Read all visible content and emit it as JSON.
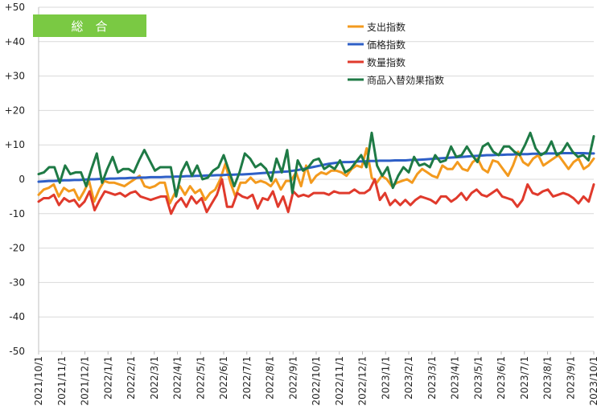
{
  "chart_data": {
    "type": "line",
    "title_badge": "総　合",
    "ylim": [
      -50,
      50
    ],
    "yticks": [
      "+50",
      "+40",
      "+30",
      "+20",
      "+10",
      "0",
      "-10",
      "-20",
      "-30",
      "-40",
      "-50"
    ],
    "ytick_values": [
      50,
      40,
      30,
      20,
      10,
      0,
      -10,
      -20,
      -30,
      -40,
      -50
    ],
    "xtick_labels": [
      "2021/10/1",
      "2021/11/1",
      "2021/12/1",
      "2022/1/1",
      "2022/2/1",
      "2022/3/1",
      "2022/4/1",
      "2022/5/1",
      "2022/6/1",
      "2022/7/1",
      "2022/8/1",
      "2022/9/1",
      "2022/10/1",
      "2022/11/1",
      "2022/12/1",
      "2023/1/1",
      "2023/2/1",
      "2023/3/1",
      "2023/4/1",
      "2023/5/1",
      "2023/6/1",
      "2023/7/1",
      "2023/8/1",
      "2023/9/1",
      "2023/10/1"
    ],
    "legend_position": "top-right",
    "grid": true,
    "x_period": "weekly, 2021/10/1 – 2023/10/1",
    "series": [
      {
        "name": "支出指数",
        "color": "#F39A1E",
        "values": [
          -4.5,
          -3,
          -2.5,
          -1.5,
          -5,
          -2.5,
          -3.5,
          -3,
          -6,
          -3.5,
          -0.5,
          -6.5,
          -3,
          -0.5,
          -1,
          -1,
          -1.5,
          -2,
          -1,
          0,
          1,
          -2,
          -2.5,
          -2,
          -1,
          -1,
          -7,
          -4,
          -2,
          -4.5,
          -2,
          -4,
          -3,
          -6,
          -4,
          -3,
          0,
          4.5,
          -1,
          -5,
          -1,
          -1,
          0.5,
          -1,
          -0.5,
          -1,
          -2,
          0,
          -3,
          -0.5,
          -0.5,
          2,
          -2,
          4,
          -1,
          1,
          2,
          1.5,
          2.5,
          2.5,
          2,
          1,
          3,
          4,
          3.5,
          9,
          0.5,
          -1,
          1,
          0,
          -2,
          -1,
          -0.5,
          0,
          -1,
          1.5,
          3,
          2,
          1,
          0.5,
          4,
          3,
          3,
          5,
          3,
          2.5,
          5,
          6,
          3,
          2,
          5.5,
          5,
          3,
          1,
          4,
          8,
          5,
          4,
          6,
          7,
          4,
          5,
          6,
          7,
          5,
          3,
          5,
          6,
          3,
          4,
          6
        ]
      },
      {
        "name": "価格指数",
        "color": "#2E5FC7",
        "values": [
          -0.7,
          -0.6,
          -0.5,
          -0.5,
          -0.4,
          -0.3,
          -0.3,
          -0.2,
          -0.2,
          -0.1,
          0,
          0,
          0.1,
          0.1,
          0.2,
          0.2,
          0.3,
          0.3,
          0.4,
          0.4,
          0.5,
          0.5,
          0.6,
          0.6,
          0.6,
          0.7,
          0.7,
          0.8,
          0.8,
          0.9,
          0.9,
          1,
          1,
          1.1,
          1.1,
          1.2,
          1.2,
          1.3,
          1.3,
          1.4,
          1.4,
          1.5,
          1.6,
          1.7,
          1.8,
          1.9,
          2,
          2.1,
          2.2,
          2.3,
          2.5,
          2.7,
          3,
          3.3,
          3.6,
          3.9,
          4.2,
          4.5,
          4.7,
          4.9,
          5,
          5,
          5.1,
          5.2,
          5.2,
          5.3,
          5.3,
          5.4,
          5.4,
          5.4,
          5.5,
          5.5,
          5.5,
          5.6,
          5.6,
          5.7,
          5.8,
          5.9,
          6,
          6.1,
          6.2,
          6.3,
          6.4,
          6.5,
          6.6,
          6.7,
          6.8,
          6.9,
          7,
          7,
          7.1,
          7.1,
          7.2,
          7.2,
          7.3,
          7.3,
          7.3,
          7.4,
          7.4,
          7.4,
          7.5,
          7.5,
          7.5,
          7.6,
          7.6,
          7.6,
          7.6,
          7.6,
          7.5,
          7.5
        ]
      },
      {
        "name": "数量指数",
        "color": "#E03A2C",
        "values": [
          -6.5,
          -5.5,
          -5.5,
          -4.5,
          -7.5,
          -5.5,
          -6.5,
          -6,
          -8,
          -6.5,
          -3.5,
          -9,
          -6,
          -3.5,
          -4,
          -4.5,
          -4,
          -5,
          -4,
          -3.5,
          -5,
          -5.5,
          -6,
          -5.5,
          -5,
          -5,
          -10,
          -7,
          -5.5,
          -8,
          -5,
          -7,
          -5.5,
          -9.5,
          -7,
          -4.5,
          0,
          -8,
          -8,
          -4,
          -5,
          -5.5,
          -4.5,
          -8.5,
          -5.5,
          -6,
          -3.5,
          -8,
          -5,
          -9.5,
          -3.5,
          -5,
          -4.5,
          -5,
          -4,
          -4,
          -4,
          -4.5,
          -3.5,
          -4,
          -4,
          -4,
          -3,
          -4,
          -4,
          -3,
          0,
          -6,
          -4,
          -7.5,
          -6,
          -7.5,
          -6,
          -7.5,
          -6,
          -5,
          -5.5,
          -6,
          -7,
          -5,
          -5,
          -6.5,
          -5.5,
          -4,
          -6,
          -4,
          -3,
          -4.5,
          -5,
          -4,
          -3,
          -5,
          -5.5,
          -6,
          -8,
          -6,
          -1.5,
          -4,
          -4.5,
          -3.5,
          -3,
          -5,
          -4.5,
          -4,
          -4.5,
          -5.5,
          -7,
          -5,
          -6.5,
          -1.5
        ]
      },
      {
        "name": "商品入替効果指数",
        "color": "#1E7A45",
        "values": [
          1.5,
          2,
          3.5,
          3.5,
          -1,
          4,
          1.5,
          2,
          2,
          -2,
          3,
          7.5,
          -1,
          3,
          6.5,
          2,
          3,
          3,
          2,
          5.5,
          8.5,
          5.5,
          2.5,
          3.5,
          3.5,
          3.5,
          -5,
          2,
          5,
          1,
          4,
          0,
          0.5,
          2.5,
          3.5,
          7,
          2.5,
          -2,
          2,
          7.5,
          6,
          3.5,
          4.5,
          3,
          -0.5,
          6,
          2,
          8.5,
          -4,
          5.5,
          2.5,
          3.5,
          5.5,
          6,
          3,
          4,
          3,
          5.5,
          2,
          3,
          5,
          7,
          3.5,
          13.5,
          4,
          1,
          3.5,
          -2.5,
          1,
          3.5,
          2,
          6.5,
          4,
          4.5,
          3.5,
          7,
          5,
          5.5,
          9.5,
          6.5,
          7,
          9.5,
          7,
          5,
          9.5,
          10.5,
          8,
          7,
          9.5,
          9.5,
          8,
          7,
          10,
          13.5,
          9,
          7,
          8,
          11,
          7,
          8,
          10.5,
          8,
          6.5,
          7,
          5.5,
          12.5
        ]
      }
    ]
  }
}
